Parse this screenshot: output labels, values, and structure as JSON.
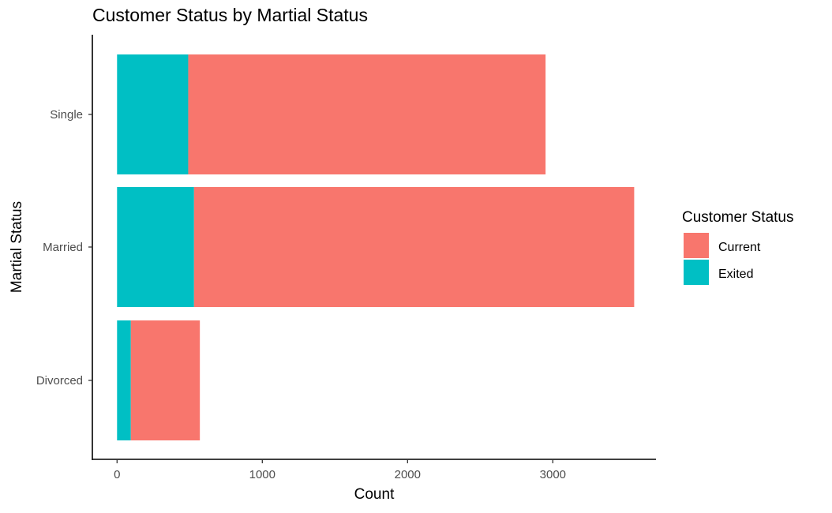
{
  "chart_data": {
    "type": "bar",
    "orientation": "horizontal",
    "stacked": true,
    "title": "Customer Status by Martial Status",
    "xlabel": "Count",
    "ylabel": "Martial Status",
    "categories": [
      "Single",
      "Married",
      "Divorced"
    ],
    "series": [
      {
        "name": "Exited",
        "color": "#00BFC4",
        "values": [
          490,
          530,
          95
        ]
      },
      {
        "name": "Current",
        "color": "#F8766D",
        "values": [
          2460,
          3030,
          475
        ]
      }
    ],
    "xlim": [
      -170,
      3710
    ],
    "xticks": [
      0,
      1000,
      2000,
      3000
    ],
    "grid": false,
    "legend": {
      "title": "Customer Status",
      "placement": "right",
      "items": [
        {
          "label": "Current",
          "color": "#F8766D"
        },
        {
          "label": "Exited",
          "color": "#00BFC4"
        }
      ]
    }
  }
}
